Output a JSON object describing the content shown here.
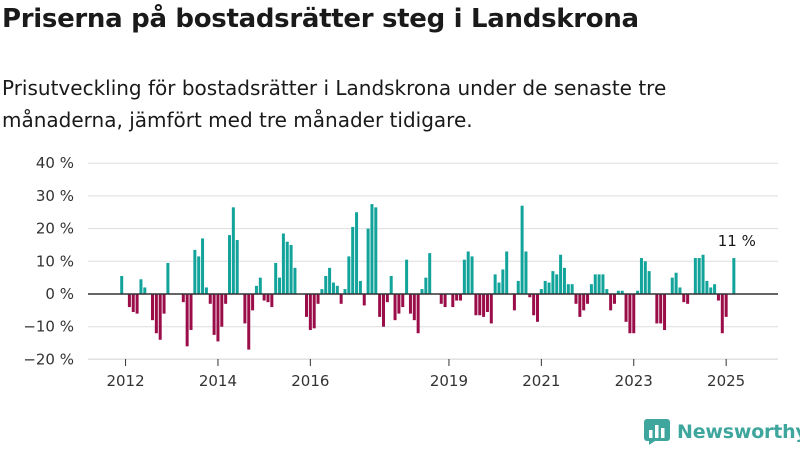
{
  "header": {
    "title": "Priserna på bostadsrätter steg i Landskrona",
    "subtitle": "Prisutveckling för bostadsrätter i Landskrona under de senaste tre månaderna, jämfört med tre månader tidigare."
  },
  "brand": {
    "name": "Newsworthy",
    "icon": "bar-chart-logo-icon"
  },
  "colors": {
    "positive": "#12a39b",
    "negative": "#9a0d49",
    "grid": "#dddddd",
    "zero": "#333333",
    "brand": "#3fa69d"
  },
  "chart_data": {
    "type": "bar",
    "title": "Priserna på bostadsrätter steg i Landskrona",
    "xlabel": "",
    "ylabel": "",
    "ylim": [
      -20,
      40
    ],
    "y_ticks": [
      40,
      30,
      20,
      10,
      0,
      -10,
      -20
    ],
    "y_tick_labels": [
      "40 %",
      "30 %",
      "20 %",
      "10 %",
      "0 %",
      "−10 %",
      "−20 %"
    ],
    "x_tick_labels": [
      {
        "label": "2012",
        "at": "2012-01"
      },
      {
        "label": "2014",
        "at": "2014-01"
      },
      {
        "label": "2016",
        "at": "2016-01"
      },
      {
        "label": "2019",
        "at": "2019-01"
      },
      {
        "label": "2021",
        "at": "2021-01"
      },
      {
        "label": "2023",
        "at": "2023-01"
      },
      {
        "label": "2025",
        "at": "2025-01"
      }
    ],
    "grid": true,
    "start_month": "2011-12",
    "values": [
      5.5,
      0,
      -4,
      -5.5,
      -6,
      4.5,
      2,
      0,
      -8,
      -12,
      -14,
      -6,
      9.5,
      0,
      0,
      0,
      -2.5,
      -16,
      -11,
      13.5,
      11.5,
      17,
      2,
      -3,
      -12.5,
      -14.5,
      -10,
      -3,
      18,
      26.5,
      16.5,
      0,
      -9,
      -17,
      -5,
      2.5,
      5,
      -2,
      -2.5,
      -4,
      9.5,
      5,
      18.5,
      16,
      15,
      8,
      0,
      0,
      -7,
      -11,
      -10.5,
      -3,
      1.5,
      5.5,
      8,
      3.5,
      2.5,
      -3,
      1.5,
      11.5,
      20.5,
      25,
      4,
      -3.5,
      20,
      27.5,
      26.5,
      -7,
      -10,
      -2.5,
      5.5,
      -8,
      -6,
      -4,
      10.5,
      -6,
      -8,
      -12,
      1.5,
      5,
      12.5,
      0,
      0,
      -3,
      -4,
      0,
      -4,
      -2,
      -2,
      10.5,
      13,
      11.5,
      -6.5,
      -6.5,
      -7,
      -5.5,
      -9,
      6,
      3.5,
      7.5,
      13,
      0,
      -5,
      4,
      27,
      13,
      -1,
      -6.5,
      -8.5,
      1.5,
      4,
      3.5,
      7,
      6,
      12,
      8,
      3,
      3,
      -3,
      -7,
      -5,
      -3,
      3,
      6,
      6,
      6,
      1.5,
      -5,
      -3,
      1,
      1,
      -8.5,
      -12,
      -12,
      1,
      11,
      10,
      7,
      0,
      -9,
      -9,
      -11,
      0,
      5,
      6.5,
      2,
      -2.5,
      -3,
      0,
      11,
      11,
      12,
      4,
      2,
      3,
      -2,
      -12,
      -7,
      0,
      11
    ]
  },
  "annotation": {
    "text": "11 %"
  }
}
